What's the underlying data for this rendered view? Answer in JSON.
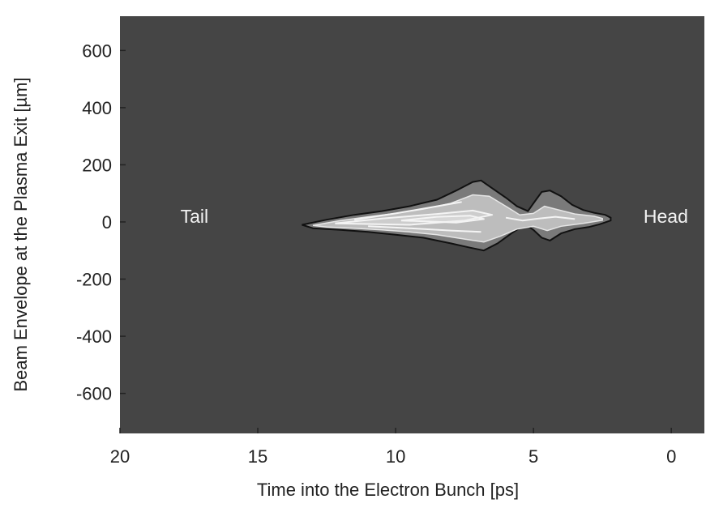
{
  "chart_data": {
    "type": "heatmap",
    "title": "",
    "xlabel": "Time into the Electron Bunch [ps]",
    "ylabel": "Beam Envelope at the Plasma Exit [µm]",
    "xlim": [
      20,
      -1.2
    ],
    "ylim": [
      -740,
      720
    ],
    "x_ticks": [
      20,
      15,
      10,
      5,
      0
    ],
    "y_ticks": [
      600,
      400,
      200,
      0,
      -200,
      -400,
      -600
    ],
    "background_color": "#454545",
    "annotations": [
      {
        "text": "Tail",
        "x": 17.3,
        "y": 20
      },
      {
        "text": "Head",
        "x": 0.2,
        "y": 20
      }
    ],
    "envelope": {
      "upper": [
        [
          13.4,
          -10
        ],
        [
          12.5,
          8
        ],
        [
          11.5,
          25
        ],
        [
          10.5,
          38
        ],
        [
          9.5,
          55
        ],
        [
          8.5,
          78
        ],
        [
          7.8,
          110
        ],
        [
          7.2,
          140
        ],
        [
          6.9,
          145
        ],
        [
          6.5,
          118
        ],
        [
          6.0,
          85
        ],
        [
          5.6,
          55
        ],
        [
          5.2,
          38
        ],
        [
          5.0,
          65
        ],
        [
          4.7,
          105
        ],
        [
          4.4,
          110
        ],
        [
          4.0,
          90
        ],
        [
          3.6,
          60
        ],
        [
          3.2,
          42
        ],
        [
          2.8,
          32
        ],
        [
          2.4,
          25
        ],
        [
          2.2,
          15
        ]
      ],
      "lower": [
        [
          2.2,
          5
        ],
        [
          2.6,
          -8
        ],
        [
          3.0,
          -18
        ],
        [
          3.5,
          -25
        ],
        [
          4.0,
          -40
        ],
        [
          4.4,
          -65
        ],
        [
          4.7,
          -55
        ],
        [
          5.0,
          -28
        ],
        [
          5.3,
          -8
        ],
        [
          5.8,
          -40
        ],
        [
          6.3,
          -75
        ],
        [
          6.8,
          -100
        ],
        [
          7.3,
          -90
        ],
        [
          8.0,
          -75
        ],
        [
          9.0,
          -55
        ],
        [
          10.0,
          -45
        ],
        [
          11.0,
          -35
        ],
        [
          12.0,
          -28
        ],
        [
          13.0,
          -22
        ],
        [
          13.4,
          -10
        ]
      ]
    },
    "inner_bright_region": {
      "upper": [
        [
          13.0,
          -12
        ],
        [
          12.0,
          5
        ],
        [
          11.0,
          18
        ],
        [
          10.0,
          30
        ],
        [
          9.0,
          45
        ],
        [
          8.0,
          65
        ],
        [
          7.2,
          95
        ],
        [
          6.6,
          90
        ],
        [
          6.0,
          55
        ],
        [
          5.5,
          25
        ],
        [
          5.0,
          30
        ],
        [
          4.6,
          55
        ],
        [
          4.2,
          45
        ],
        [
          3.5,
          28
        ],
        [
          2.8,
          20
        ],
        [
          2.5,
          12
        ]
      ],
      "lower": [
        [
          2.5,
          6
        ],
        [
          3.2,
          -5
        ],
        [
          4.0,
          -15
        ],
        [
          4.5,
          -30
        ],
        [
          5.0,
          -15
        ],
        [
          5.6,
          -25
        ],
        [
          6.2,
          -50
        ],
        [
          6.8,
          -70
        ],
        [
          7.5,
          -60
        ],
        [
          8.5,
          -45
        ],
        [
          9.5,
          -35
        ],
        [
          10.5,
          -28
        ],
        [
          11.5,
          -22
        ],
        [
          12.5,
          -18
        ],
        [
          13.0,
          -12
        ]
      ]
    },
    "core_contours": [
      [
        [
          12.2,
          -5
        ],
        [
          10.5,
          12
        ],
        [
          8.5,
          28
        ],
        [
          7.2,
          40
        ],
        [
          6.5,
          25
        ],
        [
          7.5,
          5
        ],
        [
          9.5,
          -10
        ],
        [
          12.2,
          -5
        ]
      ],
      [
        [
          9.8,
          5
        ],
        [
          8.5,
          18
        ],
        [
          7.3,
          22
        ],
        [
          6.8,
          10
        ],
        [
          7.8,
          -2
        ],
        [
          9.8,
          5
        ]
      ],
      [
        [
          11.5,
          8
        ],
        [
          10.0,
          30
        ],
        [
          8.5,
          55
        ],
        [
          7.6,
          70
        ]
      ],
      [
        [
          11.0,
          -15
        ],
        [
          9.5,
          -22
        ],
        [
          8.0,
          -30
        ],
        [
          6.9,
          -35
        ]
      ],
      [
        [
          6.0,
          15
        ],
        [
          5.4,
          5
        ],
        [
          4.8,
          12
        ],
        [
          4.2,
          18
        ],
        [
          3.5,
          10
        ]
      ]
    ]
  }
}
